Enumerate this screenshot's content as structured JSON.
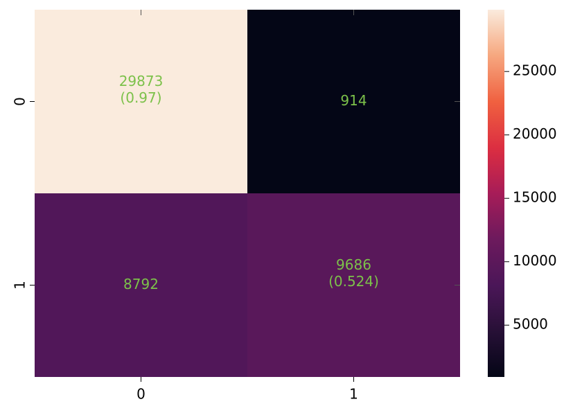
{
  "chart_data": {
    "type": "heatmap",
    "title": "",
    "xlabel": "",
    "ylabel": "",
    "x_categories": [
      "0",
      "1"
    ],
    "y_categories": [
      "0",
      "1"
    ],
    "matrix": [
      [
        29873,
        914
      ],
      [
        8792,
        9686
      ]
    ],
    "cells": [
      {
        "row": 0,
        "col": 0,
        "value": 29873,
        "text": "29873",
        "subtext": "(0.97)"
      },
      {
        "row": 0,
        "col": 1,
        "value": 914,
        "text": "914",
        "subtext": ""
      },
      {
        "row": 1,
        "col": 0,
        "value": 8792,
        "text": "8792",
        "subtext": ""
      },
      {
        "row": 1,
        "col": 1,
        "value": 9686,
        "text": "9686",
        "subtext": "(0.524)"
      }
    ],
    "colormap": "rocket",
    "annotation_color": "#7cc14a",
    "colorbar": {
      "min": 914,
      "max": 29873,
      "ticks": [
        25000,
        20000,
        15000,
        10000,
        5000
      ],
      "tick_labels": [
        "25000",
        "20000",
        "15000",
        "10000",
        "5000"
      ]
    }
  }
}
